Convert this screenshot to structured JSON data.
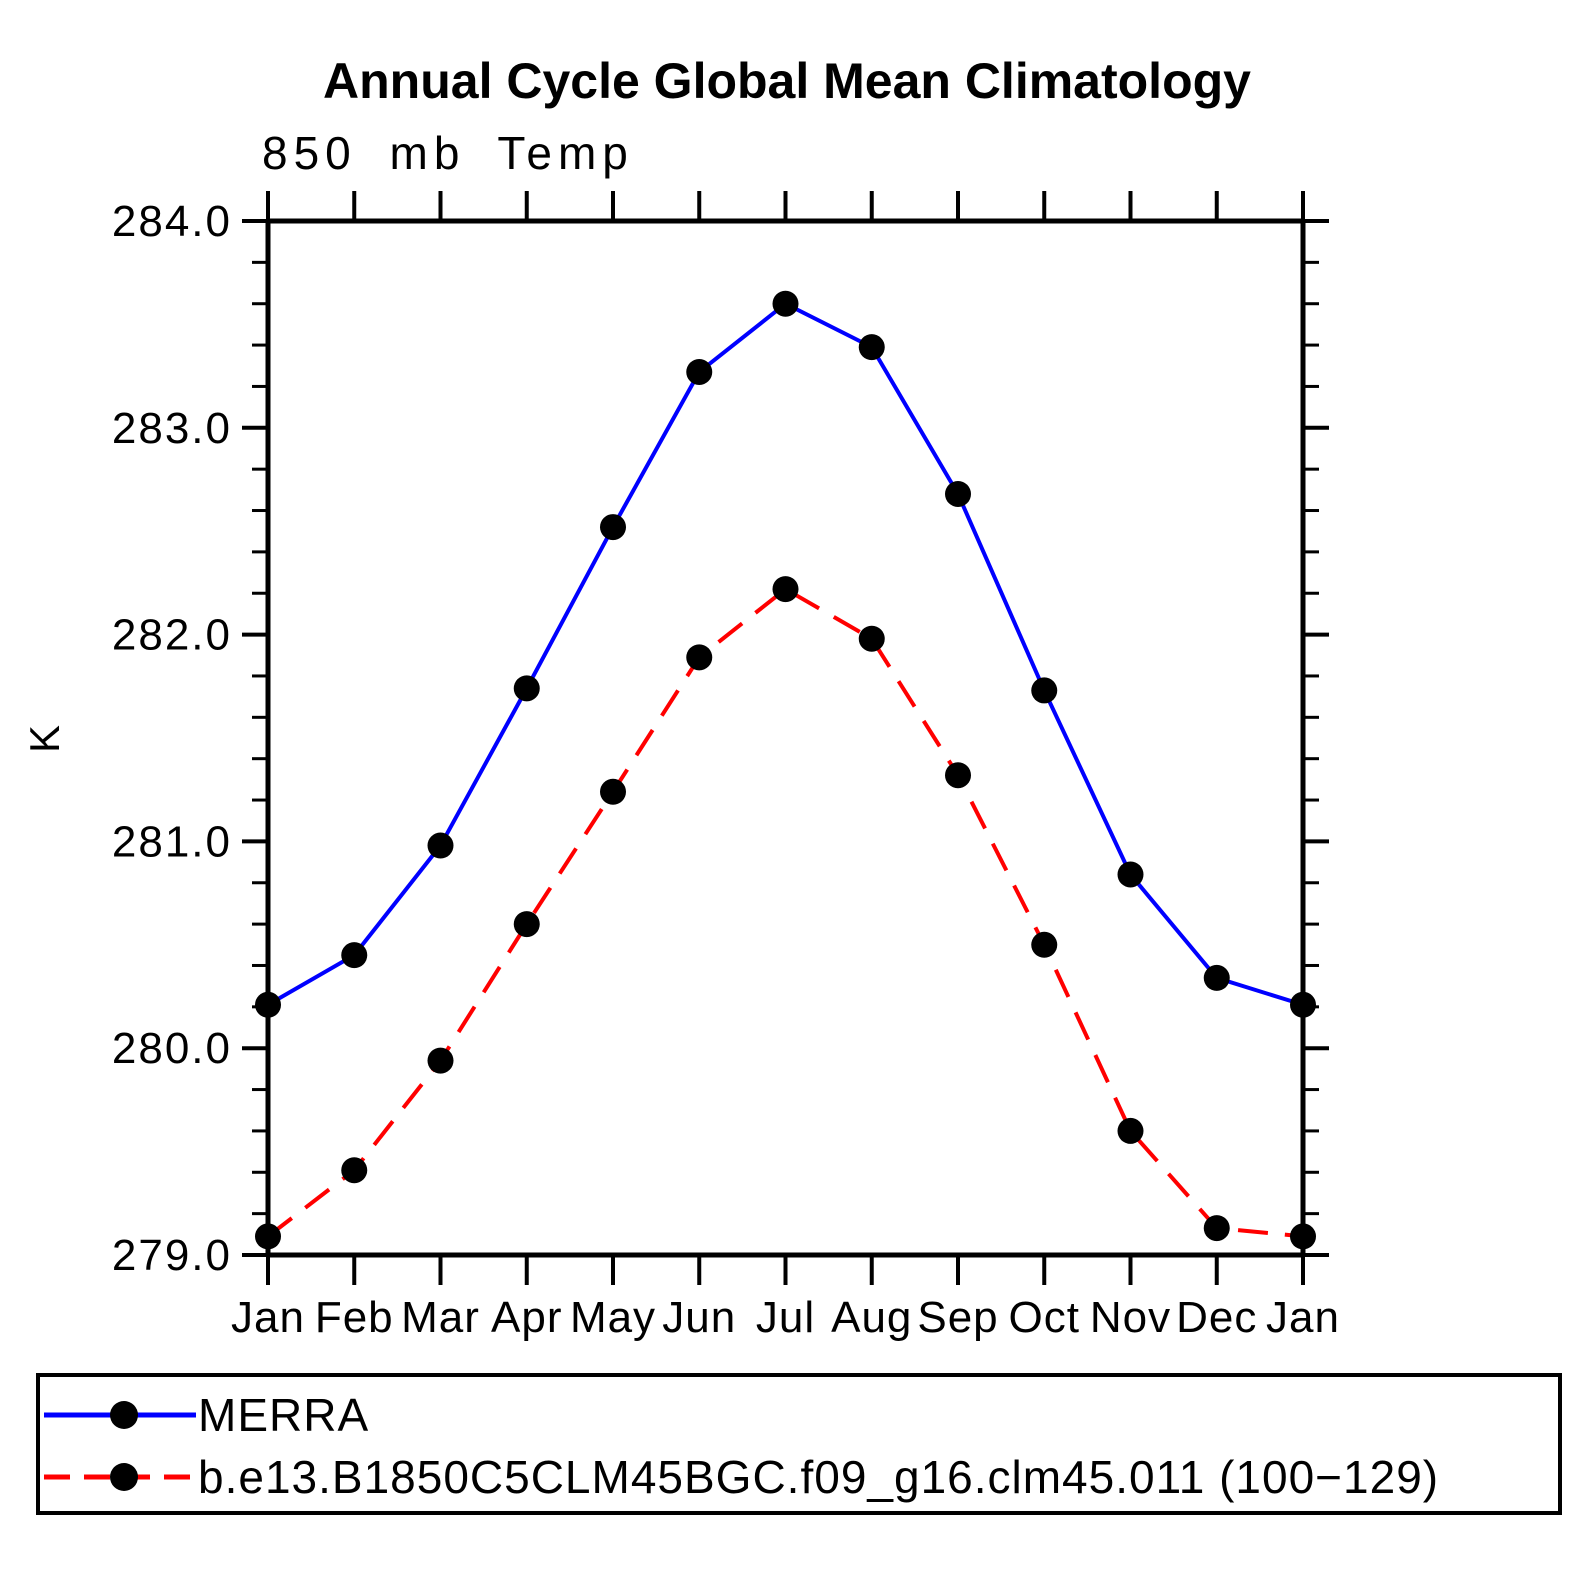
{
  "window": {
    "background": "#ffffff",
    "text_color": "#000000"
  },
  "chart_data": {
    "type": "line",
    "title": "Annual Cycle Global Mean Climatology",
    "subtitle": "850 mb Temp",
    "xlabel": "",
    "ylabel": "K",
    "categories": [
      "Jan",
      "Feb",
      "Mar",
      "Apr",
      "May",
      "Jun",
      "Jul",
      "Aug",
      "Sep",
      "Oct",
      "Nov",
      "Dec",
      "Jan"
    ],
    "ylim": [
      279.0,
      284.0
    ],
    "y_major_ticks": [
      {
        "value": 284.0,
        "label": "284.0"
      },
      {
        "value": 283.0,
        "label": "283.0"
      },
      {
        "value": 282.0,
        "label": "282.0"
      },
      {
        "value": 281.0,
        "label": "281.0"
      },
      {
        "value": 280.0,
        "label": "280.0"
      },
      {
        "value": 279.0,
        "label": "279.0"
      }
    ],
    "y_minor_step": 0.2,
    "grid": false,
    "legend_position": "bottom-box",
    "axis_color": "#000000",
    "marker_color": "#000000",
    "series": [
      {
        "name": "MERRA",
        "color": "#0000ff",
        "line_style": "solid",
        "marker": "circle",
        "values": [
          280.21,
          280.45,
          280.98,
          281.74,
          282.52,
          283.27,
          283.6,
          283.39,
          282.68,
          281.73,
          280.84,
          280.34,
          280.21
        ]
      },
      {
        "name": "b.e13.B1850C5CLM45BGC.f09_g16.clm45.011 (100−129)",
        "color": "#ff0000",
        "line_style": "dashed",
        "marker": "circle",
        "values": [
          279.09,
          279.41,
          279.94,
          280.6,
          281.24,
          281.89,
          282.22,
          281.98,
          281.32,
          280.5,
          279.6,
          279.13,
          279.09
        ]
      }
    ]
  }
}
